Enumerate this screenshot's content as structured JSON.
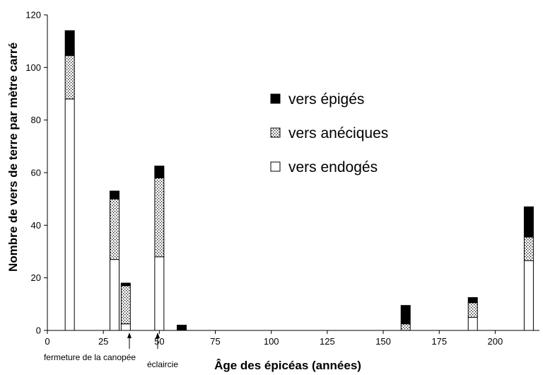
{
  "chart_data": {
    "type": "bar",
    "stacked": true,
    "xlabel": "Âge des épicéas (années)",
    "ylabel": "Nombre de vers de terre par mètre carré",
    "xlim": [
      0,
      215
    ],
    "ylim": [
      0,
      120
    ],
    "xticks": [
      0,
      25,
      50,
      75,
      100,
      125,
      150,
      175,
      200
    ],
    "yticks": [
      0,
      20,
      40,
      60,
      80,
      100,
      120
    ],
    "x": [
      10,
      30,
      35,
      50,
      60,
      160,
      190,
      215
    ],
    "series": [
      {
        "name": "vers endogés",
        "pattern": "white",
        "values": [
          88,
          27,
          2.5,
          28,
          0,
          0,
          5,
          26.5
        ]
      },
      {
        "name": "vers anéciques",
        "pattern": "dotted",
        "values": [
          16.5,
          23,
          14.5,
          30,
          0,
          2.5,
          5.5,
          9
        ]
      },
      {
        "name": "vers épigés",
        "pattern": "black",
        "values": [
          9.5,
          3,
          1,
          4.5,
          2,
          7,
          2,
          11.5
        ]
      }
    ],
    "legend_position": "upper-center",
    "annotations": [
      {
        "text": "fermeture de la canopée",
        "x": 33
      },
      {
        "text": "éclaircie",
        "x": 48
      }
    ],
    "grid": false
  }
}
